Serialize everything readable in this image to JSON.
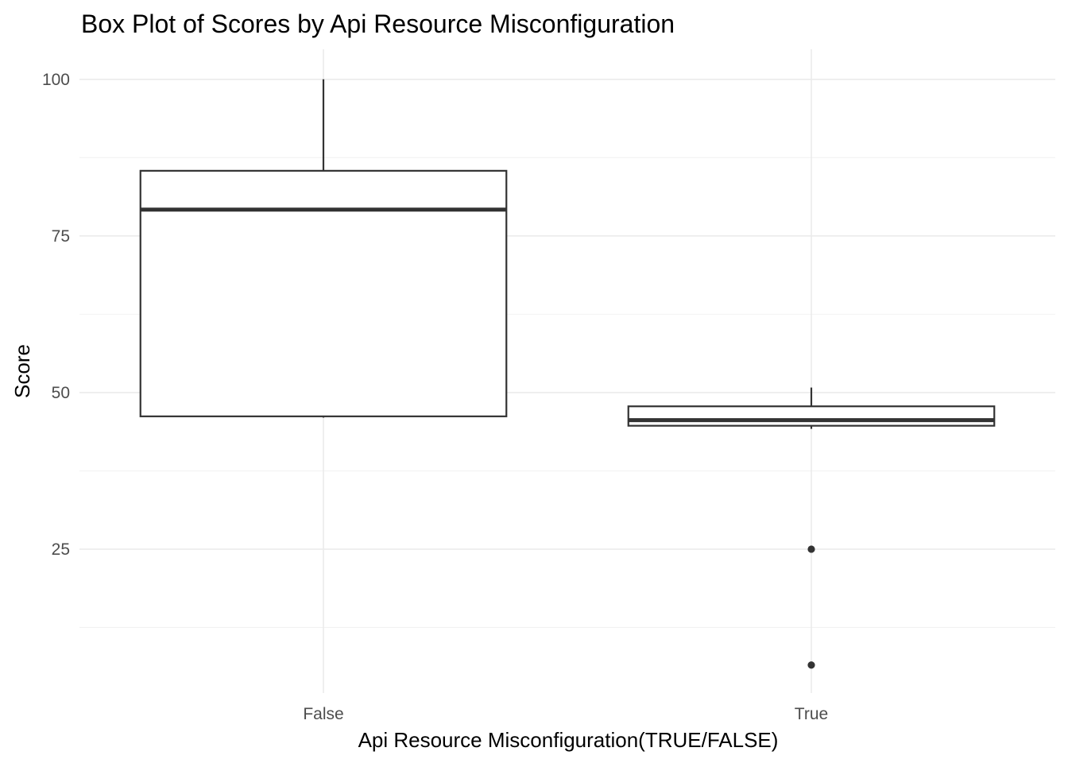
{
  "chart_data": {
    "type": "boxplot",
    "title": "Box Plot of Scores by Api Resource Misconfiguration",
    "xlabel": "Api Resource Misconfiguration(TRUE/FALSE)",
    "ylabel": "Score",
    "ylim": [
      0,
      104
    ],
    "y_ticks": [
      25,
      50,
      75,
      100
    ],
    "grid": true,
    "categories": [
      "False",
      "True"
    ],
    "boxes": [
      {
        "category": "False",
        "whisker_low": 46,
        "q1": 46.2,
        "median": 79.2,
        "q3": 85.4,
        "whisker_high": 100,
        "outliers": []
      },
      {
        "category": "True",
        "whisker_low": 44.2,
        "q1": 44.7,
        "median": 45.6,
        "q3": 47.8,
        "whisker_high": 50.8,
        "outliers": [
          25,
          6.5
        ]
      }
    ]
  }
}
